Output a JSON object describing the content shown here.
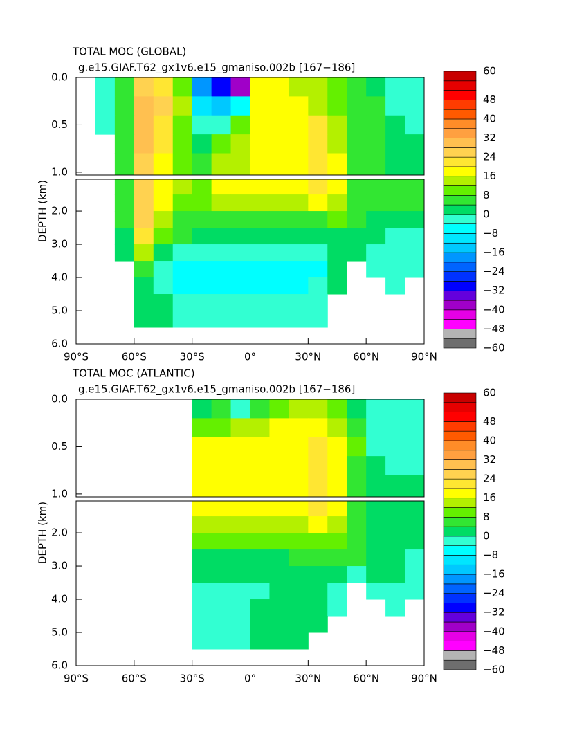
{
  "chart_data": [
    {
      "type": "contour",
      "title": "TOTAL MOC (GLOBAL)",
      "subtitle": "g.e15.GIAF.T62_gx1v6.e15_gmaniso.002b  [167−186]",
      "ylabel": "DEPTH (km)",
      "xlim": [
        -90,
        90
      ],
      "xticks": [
        {
          "value": -90,
          "label": "90°S"
        },
        {
          "value": -60,
          "label": "60°S"
        },
        {
          "value": -30,
          "label": "30°S"
        },
        {
          "value": 0,
          "label": "0°"
        },
        {
          "value": 30,
          "label": "30°N"
        },
        {
          "value": 60,
          "label": "60°N"
        },
        {
          "value": 90,
          "label": "90°N"
        }
      ],
      "panels": [
        {
          "ylim": [
            0,
            1.03
          ],
          "yticks": [
            {
              "value": 0,
              "label": "0.0"
            },
            0.5,
            {
              "value": 1,
              "label": "1.0"
            }
          ]
        },
        {
          "ylim": [
            1.04,
            6
          ],
          "yticks": [
            {
              "value": 2,
              "label": "2.0"
            },
            {
              "value": 3,
              "label": "3.0"
            },
            {
              "value": 4,
              "label": "4.0"
            },
            {
              "value": 5,
              "label": "5.0"
            },
            {
              "value": 6,
              "label": "6.0"
            }
          ]
        }
      ],
      "lat_edges": [
        -90,
        -80,
        -70,
        -60,
        -50,
        -40,
        -30,
        -20,
        -10,
        0,
        10,
        20,
        30,
        40,
        50,
        60,
        70,
        80,
        90
      ],
      "depth_edges": [
        0,
        0.2,
        0.4,
        0.6,
        0.8,
        1.04,
        1.5,
        2,
        2.5,
        3,
        3.5,
        4,
        4.5,
        5,
        5.5,
        6
      ],
      "z": [
        [
          null,
          -4,
          6,
          26,
          22,
          10,
          -20,
          -30,
          -40,
          18,
          18,
          14,
          12,
          10,
          6,
          2,
          -2,
          -2
        ],
        [
          null,
          -4,
          6,
          28,
          24,
          12,
          -12,
          -14,
          -6,
          18,
          18,
          16,
          14,
          10,
          6,
          4,
          -2,
          -2
        ],
        [
          null,
          -2,
          6,
          28,
          22,
          10,
          -4,
          -2,
          8,
          16,
          18,
          18,
          20,
          14,
          6,
          4,
          0,
          -2
        ],
        [
          null,
          null,
          6,
          28,
          20,
          10,
          2,
          8,
          14,
          16,
          18,
          18,
          22,
          14,
          6,
          4,
          2,
          2
        ],
        [
          null,
          null,
          6,
          26,
          18,
          10,
          6,
          12,
          14,
          16,
          18,
          18,
          22,
          16,
          6,
          4,
          2,
          2
        ],
        [
          null,
          null,
          6,
          26,
          18,
          12,
          10,
          16,
          18,
          18,
          18,
          18,
          20,
          16,
          6,
          4,
          4,
          4
        ],
        [
          null,
          null,
          6,
          26,
          16,
          10,
          8,
          12,
          14,
          14,
          14,
          14,
          16,
          14,
          6,
          4,
          4,
          4
        ],
        [
          null,
          null,
          4,
          24,
          14,
          6,
          6,
          6,
          6,
          6,
          4,
          4,
          6,
          8,
          4,
          2,
          2,
          2
        ],
        [
          null,
          null,
          2,
          22,
          10,
          4,
          2,
          2,
          2,
          2,
          2,
          2,
          2,
          2,
          2,
          2,
          -2,
          -2
        ],
        [
          null,
          null,
          2,
          14,
          2,
          -2,
          -2,
          -2,
          -2,
          -2,
          -2,
          -2,
          -2,
          2,
          2,
          -2,
          -2,
          -2
        ],
        [
          null,
          null,
          null,
          4,
          -2,
          -6,
          -6,
          -6,
          -8,
          -8,
          -6,
          -6,
          -6,
          2,
          null,
          -2,
          -2,
          -2
        ],
        [
          null,
          null,
          null,
          2,
          -2,
          -6,
          -6,
          -6,
          -6,
          -6,
          -6,
          -6,
          -4,
          2,
          null,
          null,
          -2,
          null
        ],
        [
          null,
          null,
          null,
          2,
          2,
          -2,
          -2,
          -2,
          -2,
          -2,
          -2,
          -2,
          -2,
          null,
          null,
          null,
          null,
          null
        ],
        [
          null,
          null,
          null,
          2,
          2,
          -2,
          -2,
          -2,
          -2,
          -2,
          -2,
          -2,
          -2,
          null,
          null,
          null,
          null,
          null
        ],
        [
          null,
          null,
          null,
          null,
          null,
          null,
          null,
          null,
          null,
          null,
          null,
          null,
          null,
          null,
          null,
          null,
          null,
          null
        ]
      ],
      "levels": [
        -60,
        -52,
        -48,
        -44,
        -40,
        -36,
        -32,
        -28,
        -24,
        -20,
        -16,
        -12,
        -8,
        -4,
        0,
        4,
        8,
        12,
        16,
        20,
        24,
        28,
        32,
        36,
        40,
        44,
        48,
        52,
        56,
        60
      ],
      "colors": [
        "#6e6e6e",
        "#b4b4b4",
        "#ff00ff",
        "#e600e6",
        "#a000c8",
        "#6400dc",
        "#0000ff",
        "#0032ff",
        "#0064ff",
        "#0096ff",
        "#00c8ff",
        "#00e6ff",
        "#00ffff",
        "#32ffd2",
        "#00dc64",
        "#32e632",
        "#64f000",
        "#b4f000",
        "#ffff00",
        "#ffe632",
        "#ffd250",
        "#ffc050",
        "#ffa040",
        "#ff8c28",
        "#ff5a00",
        "#ff3c00",
        "#ff0000",
        "#e60000",
        "#c80000"
      ],
      "cbticks": [
        60,
        48,
        40,
        32,
        24,
        16,
        8,
        0,
        {
          "value": -8,
          "label": "−8"
        },
        {
          "value": -16,
          "label": "−16"
        },
        {
          "value": -24,
          "label": "−24"
        },
        {
          "value": -32,
          "label": "−32"
        },
        {
          "value": -40,
          "label": "−40"
        },
        {
          "value": -48,
          "label": "−48"
        },
        {
          "value": -60,
          "label": "−60"
        }
      ]
    },
    {
      "type": "contour",
      "title": "TOTAL MOC (ATLANTIC)",
      "subtitle": "g.e15.GIAF.T62_gx1v6.e15_gmaniso.002b  [167−186]",
      "ylabel": "DEPTH (km)",
      "xlim": [
        -90,
        90
      ],
      "xticks": [
        {
          "value": -90,
          "label": "90°S"
        },
        {
          "value": -60,
          "label": "60°S"
        },
        {
          "value": -30,
          "label": "30°S"
        },
        {
          "value": 0,
          "label": "0°"
        },
        {
          "value": 30,
          "label": "30°N"
        },
        {
          "value": 60,
          "label": "60°N"
        },
        {
          "value": 90,
          "label": "90°N"
        }
      ],
      "panels": [
        {
          "ylim": [
            0,
            1.03
          ],
          "yticks": [
            {
              "value": 0,
              "label": "0.0"
            },
            0.5,
            {
              "value": 1,
              "label": "1.0"
            }
          ]
        },
        {
          "ylim": [
            1.04,
            6
          ],
          "yticks": [
            {
              "value": 2,
              "label": "2.0"
            },
            {
              "value": 3,
              "label": "3.0"
            },
            {
              "value": 4,
              "label": "4.0"
            },
            {
              "value": 5,
              "label": "5.0"
            },
            {
              "value": 6,
              "label": "6.0"
            }
          ]
        }
      ],
      "lat_edges": [
        -90,
        -80,
        -70,
        -60,
        -50,
        -40,
        -30,
        -20,
        -10,
        0,
        10,
        20,
        30,
        40,
        50,
        60,
        70,
        80,
        90
      ],
      "depth_edges": [
        0,
        0.2,
        0.4,
        0.6,
        0.8,
        1.04,
        1.5,
        2,
        2.5,
        3,
        3.5,
        4,
        4.5,
        5,
        5.5,
        6
      ],
      "z": [
        [
          null,
          null,
          null,
          null,
          null,
          null,
          2,
          4,
          -2,
          6,
          10,
          14,
          14,
          8,
          2,
          -2,
          -2,
          -2
        ],
        [
          null,
          null,
          null,
          null,
          null,
          null,
          8,
          10,
          12,
          14,
          16,
          18,
          18,
          14,
          6,
          -2,
          -2,
          -2
        ],
        [
          null,
          null,
          null,
          null,
          null,
          null,
          16,
          16,
          16,
          18,
          18,
          18,
          20,
          16,
          8,
          -2,
          -2,
          -2
        ],
        [
          null,
          null,
          null,
          null,
          null,
          null,
          18,
          18,
          18,
          18,
          18,
          18,
          22,
          18,
          6,
          2,
          -2,
          -2
        ],
        [
          null,
          null,
          null,
          null,
          null,
          null,
          18,
          18,
          18,
          18,
          18,
          18,
          22,
          18,
          6,
          2,
          2,
          2
        ],
        [
          null,
          null,
          null,
          null,
          null,
          null,
          18,
          18,
          18,
          18,
          18,
          18,
          20,
          16,
          6,
          2,
          2,
          2
        ],
        [
          null,
          null,
          null,
          null,
          null,
          null,
          14,
          14,
          14,
          14,
          14,
          14,
          16,
          12,
          6,
          2,
          2,
          2
        ],
        [
          null,
          null,
          null,
          null,
          null,
          null,
          8,
          8,
          8,
          8,
          8,
          8,
          10,
          10,
          6,
          2,
          2,
          2
        ],
        [
          null,
          null,
          null,
          null,
          null,
          null,
          2,
          2,
          2,
          2,
          2,
          4,
          4,
          6,
          4,
          2,
          2,
          -2
        ],
        [
          null,
          null,
          null,
          null,
          null,
          null,
          2,
          2,
          2,
          2,
          2,
          2,
          2,
          2,
          -2,
          2,
          2,
          -2
        ],
        [
          null,
          null,
          null,
          null,
          null,
          null,
          -2,
          -2,
          -2,
          -2,
          2,
          2,
          2,
          -2,
          null,
          -2,
          -2,
          -2
        ],
        [
          null,
          null,
          null,
          null,
          null,
          null,
          -2,
          -2,
          -2,
          2,
          2,
          2,
          2,
          -2,
          null,
          null,
          -2,
          null
        ],
        [
          null,
          null,
          null,
          null,
          null,
          null,
          -2,
          -2,
          -2,
          2,
          2,
          2,
          2,
          null,
          null,
          null,
          null,
          null
        ],
        [
          null,
          null,
          null,
          null,
          null,
          null,
          -2,
          -2,
          -2,
          2,
          2,
          2,
          null,
          null,
          null,
          null,
          null,
          null
        ],
        [
          null,
          null,
          null,
          null,
          null,
          null,
          null,
          null,
          null,
          null,
          null,
          null,
          null,
          null,
          null,
          null,
          null,
          null
        ]
      ],
      "levels": [
        -60,
        -52,
        -48,
        -44,
        -40,
        -36,
        -32,
        -28,
        -24,
        -20,
        -16,
        -12,
        -8,
        -4,
        0,
        4,
        8,
        12,
        16,
        20,
        24,
        28,
        32,
        36,
        40,
        44,
        48,
        52,
        56,
        60
      ],
      "colors": [
        "#6e6e6e",
        "#b4b4b4",
        "#ff00ff",
        "#e600e6",
        "#a000c8",
        "#6400dc",
        "#0000ff",
        "#0032ff",
        "#0064ff",
        "#0096ff",
        "#00c8ff",
        "#00e6ff",
        "#00ffff",
        "#32ffd2",
        "#00dc64",
        "#32e632",
        "#64f000",
        "#b4f000",
        "#ffff00",
        "#ffe632",
        "#ffd250",
        "#ffc050",
        "#ffa040",
        "#ff8c28",
        "#ff5a00",
        "#ff3c00",
        "#ff0000",
        "#e60000",
        "#c80000"
      ],
      "cbticks": [
        60,
        48,
        40,
        32,
        24,
        16,
        8,
        0,
        {
          "value": -8,
          "label": "−8"
        },
        {
          "value": -16,
          "label": "−16"
        },
        {
          "value": -24,
          "label": "−24"
        },
        {
          "value": -32,
          "label": "−32"
        },
        {
          "value": -40,
          "label": "−40"
        },
        {
          "value": -48,
          "label": "−48"
        },
        {
          "value": -60,
          "label": "−60"
        }
      ]
    }
  ]
}
